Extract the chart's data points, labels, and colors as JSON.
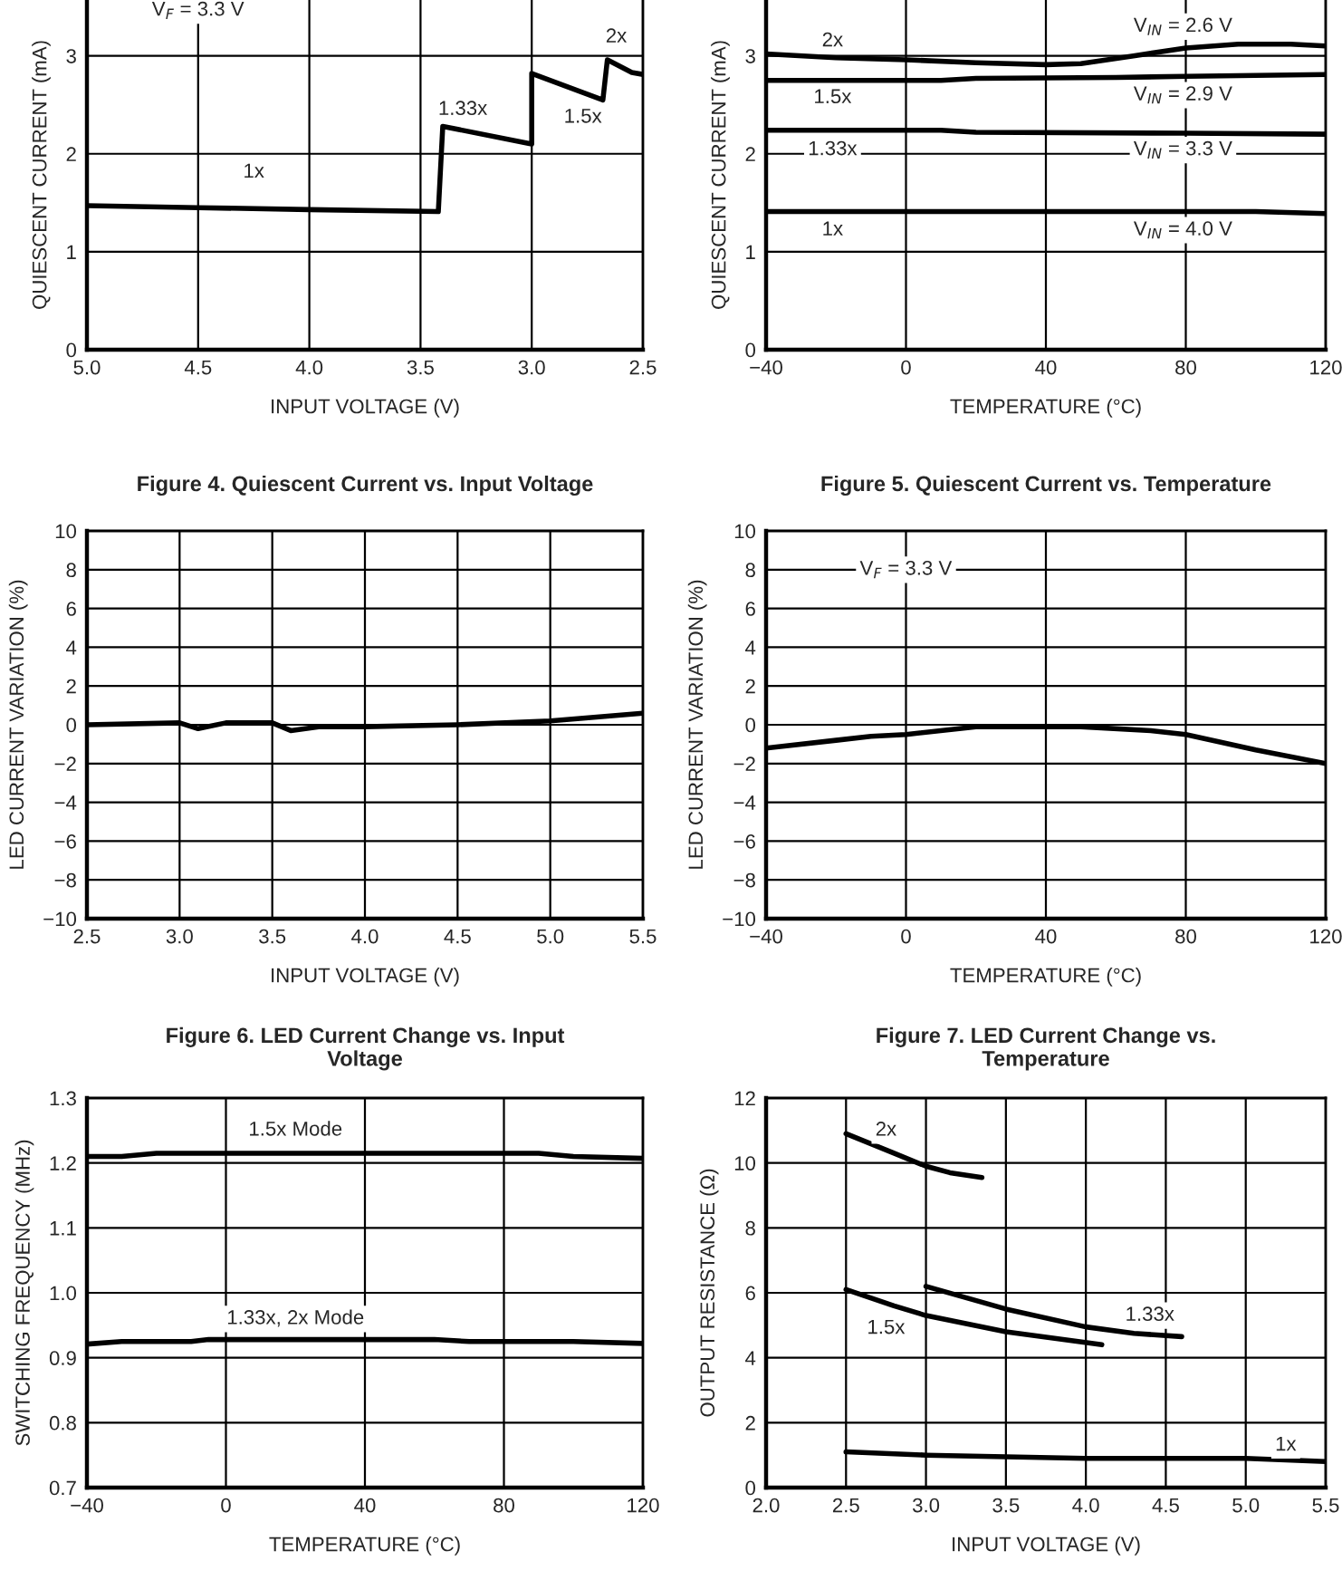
{
  "chart_data": [
    {
      "type": "line",
      "title": "Figure 4. Quiescent Current vs. Input Voltage",
      "xlabel": "INPUT VOLTAGE (V)",
      "ylabel": "QUIESCENT CURRENT (mA)",
      "xlim": [
        5.0,
        2.5
      ],
      "ylim": [
        0,
        3.57
      ],
      "xticks": [
        {
          "value": 5,
          "label": "5.0"
        },
        4.5,
        {
          "value": 4,
          "label": "4.0"
        },
        3.5,
        {
          "value": 3,
          "label": "3.0"
        },
        2.5
      ],
      "yticks": [
        0,
        1,
        2,
        3
      ],
      "grid": true,
      "series": [
        {
          "color": "#000000",
          "x": [
            5.0,
            4.5,
            4.0,
            3.42,
            3.4,
            3.0,
            3.0,
            2.68,
            2.66,
            2.55,
            2.5
          ],
          "values": [
            1.47,
            1.45,
            1.43,
            1.41,
            2.28,
            2.1,
            2.82,
            2.55,
            2.96,
            2.83,
            2.81
          ]
        }
      ],
      "annotations": [
        "V$_{F}$ = 3.3 V",
        {
          "text": "1x",
          "x": 4.25,
          "y": 1.81
        },
        {
          "text": "1.33x",
          "x": 3.31,
          "y": 2.45
        },
        {
          "text": "1.5x",
          "x": 2.77,
          "y": 2.37
        },
        {
          "text": "2x",
          "x": 2.62,
          "y": 3.19
        }
      ]
    },
    {
      "type": "line",
      "title": "Figure 5. Quiescent Current vs. Temperature",
      "xlabel": "TEMPERATURE (°C)",
      "ylabel": "QUIESCENT CURRENT (mA)",
      "xlim": [
        -40,
        120
      ],
      "ylim": [
        0,
        3.57
      ],
      "xticks": [
        {
          "value": -40,
          "label": "−40"
        },
        0,
        40,
        80,
        120
      ],
      "yticks": [
        0,
        1,
        2,
        3
      ],
      "grid": true,
      "series": [
        {
          "color": "#000000",
          "x": [
            -40,
            -20,
            0,
            20,
            40,
            50,
            65,
            80,
            95,
            110,
            120
          ],
          "values": [
            3.02,
            2.98,
            2.96,
            2.93,
            2.91,
            2.92,
            3.0,
            3.08,
            3.12,
            3.12,
            3.1
          ]
        },
        {
          "color": "#000000",
          "x": [
            -40,
            10,
            20,
            60,
            80,
            120
          ],
          "values": [
            2.75,
            2.75,
            2.77,
            2.78,
            2.79,
            2.81
          ]
        },
        {
          "color": "#000000",
          "x": [
            -40,
            10,
            20,
            80,
            120
          ],
          "values": [
            2.24,
            2.24,
            2.22,
            2.21,
            2.2
          ]
        },
        {
          "color": "#000000",
          "x": [
            -40,
            100,
            120
          ],
          "values": [
            1.41,
            1.41,
            1.39
          ]
        }
      ],
      "annotations": [
        {
          "text": "2x",
          "x": -21,
          "y": 3.15
        },
        "V$_{IN}$ = 2.6 V",
        {
          "text": "1.5x",
          "x": -21,
          "y": 2.57
        },
        "V$_{IN}$ = 2.9 V",
        {
          "text": "1.33x",
          "x": -21,
          "y": 2.04
        },
        "V$_{IN}$ = 3.3 V",
        {
          "text": "1x",
          "x": -21,
          "y": 1.22
        },
        "V$_{IN}$ = 4.0 V"
      ]
    },
    {
      "type": "line",
      "title": "Figure 6. LED Current Change vs. Input\nVoltage",
      "xlabel": "INPUT VOLTAGE (V)",
      "ylabel": "LED CURRENT VARIATION (%)",
      "xlim": [
        2.5,
        5.5
      ],
      "ylim": [
        -10,
        10
      ],
      "xticks": [
        2.5,
        {
          "value": 3,
          "label": "3.0"
        },
        3.5,
        {
          "value": 4,
          "label": "4.0"
        },
        4.5,
        {
          "value": 5,
          "label": "5.0"
        },
        5.5
      ],
      "yticks": [
        {
          "value": -10,
          "label": "−10"
        },
        {
          "value": -8,
          "label": "−8"
        },
        {
          "value": -6,
          "label": "−6"
        },
        {
          "value": -4,
          "label": "−4"
        },
        {
          "value": -2,
          "label": "−2"
        },
        0,
        2,
        4,
        6,
        8,
        10
      ],
      "grid": true,
      "series": [
        {
          "color": "#000000",
          "x": [
            2.5,
            3.0,
            3.1,
            3.25,
            3.5,
            3.6,
            3.75,
            4.0,
            4.5,
            5.0,
            5.5
          ],
          "values": [
            0,
            0.1,
            -0.2,
            0.1,
            0.1,
            -0.3,
            -0.1,
            -0.1,
            0,
            0.2,
            0.6
          ]
        }
      ]
    },
    {
      "type": "line",
      "title": "Figure 7. LED Current Change vs.\nTemperature",
      "xlabel": "TEMPERATURE (°C)",
      "ylabel": "LED CURRENT VARIATION (%)",
      "xlim": [
        -40,
        120
      ],
      "ylim": [
        -10,
        10
      ],
      "xticks": [
        {
          "value": -40,
          "label": "−40"
        },
        0,
        40,
        80,
        120
      ],
      "yticks": [
        {
          "value": -10,
          "label": "−10"
        },
        {
          "value": -8,
          "label": "−8"
        },
        {
          "value": -6,
          "label": "−6"
        },
        {
          "value": -4,
          "label": "−4"
        },
        {
          "value": -2,
          "label": "−2"
        },
        0,
        2,
        4,
        6,
        8,
        10
      ],
      "grid": true,
      "series": [
        {
          "color": "#000000",
          "x": [
            -40,
            -20,
            -10,
            0,
            20,
            40,
            50,
            70,
            80,
            100,
            120
          ],
          "values": [
            -1.2,
            -0.8,
            -0.6,
            -0.5,
            -0.1,
            -0.1,
            -0.1,
            -0.3,
            -0.5,
            -1.3,
            -2.0
          ]
        }
      ],
      "annotations": [
        "V$_{F}$ = 3.3 V"
      ]
    },
    {
      "type": "line",
      "xlabel": "TEMPERATURE (°C)",
      "ylabel": "SWITCHING FREQUENCY (MHz)",
      "xlim": [
        -40,
        120
      ],
      "ylim": [
        0.7,
        1.3
      ],
      "xticks": [
        {
          "value": -40,
          "label": "−40"
        },
        0,
        40,
        80,
        120
      ],
      "yticks": [
        0.7,
        0.8,
        0.9,
        {
          "value": 1,
          "label": "1.0"
        },
        1.1,
        1.2,
        1.3
      ],
      "grid": true,
      "series": [
        {
          "color": "#000000",
          "x": [
            -40,
            -30,
            -20,
            80,
            90,
            100,
            120
          ],
          "values": [
            1.21,
            1.21,
            1.215,
            1.215,
            1.215,
            1.21,
            1.207
          ]
        },
        {
          "color": "#000000",
          "x": [
            -40,
            -30,
            -10,
            -5,
            60,
            70,
            100,
            120
          ],
          "values": [
            0.921,
            0.925,
            0.925,
            0.928,
            0.928,
            0.925,
            0.925,
            0.922
          ]
        }
      ],
      "annotations": [
        "1.5x Mode",
        "1.33x, 2x Mode"
      ]
    },
    {
      "type": "line",
      "xlabel": "INPUT VOLTAGE (V)",
      "ylabel": "OUTPUT RESISTANCE (Ω)",
      "xlim": [
        2.0,
        5.5
      ],
      "ylim": [
        0,
        12
      ],
      "xticks": [
        {
          "value": 2,
          "label": "2.0"
        },
        2.5,
        {
          "value": 3,
          "label": "3.0"
        },
        3.5,
        {
          "value": 4,
          "label": "4.0"
        },
        4.5,
        {
          "value": 5,
          "label": "5.0"
        },
        5.5
      ],
      "yticks": [
        0,
        2,
        4,
        6,
        8,
        10,
        12
      ],
      "grid": true,
      "series": [
        {
          "color": "#000000",
          "x": [
            2.5,
            2.8,
            3.0,
            3.15,
            3.35
          ],
          "values": [
            10.9,
            10.3,
            9.9,
            9.7,
            9.55
          ]
        },
        {
          "color": "#000000",
          "x": [
            2.5,
            2.8,
            3.0,
            3.5,
            4.1
          ],
          "values": [
            6.1,
            5.6,
            5.3,
            4.8,
            4.4
          ]
        },
        {
          "color": "#000000",
          "x": [
            3.0,
            3.5,
            4.0,
            4.3,
            4.6
          ],
          "values": [
            6.2,
            5.5,
            4.95,
            4.75,
            4.65
          ]
        },
        {
          "color": "#000000",
          "x": [
            2.5,
            3.0,
            3.5,
            4.0,
            5.0,
            5.5
          ],
          "values": [
            1.1,
            1.0,
            0.95,
            0.9,
            0.9,
            0.8
          ]
        }
      ],
      "annotations": [
        {
          "text": "2x",
          "x": 2.75,
          "y": 11.0
        },
        {
          "text": "1.5x",
          "x": 2.75,
          "y": 4.9
        },
        {
          "text": "1.33x",
          "x": 4.4,
          "y": 5.3
        },
        {
          "text": "1x",
          "x": 5.25,
          "y": 1.3
        }
      ]
    }
  ]
}
